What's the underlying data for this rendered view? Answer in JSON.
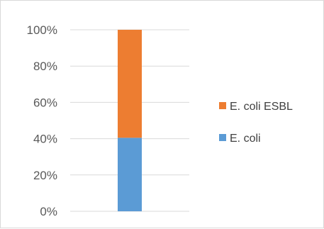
{
  "chart_data": {
    "type": "bar",
    "stacked": true,
    "percent_stacked": true,
    "categories": [
      ""
    ],
    "series": [
      {
        "name": "E. coli",
        "values": [
          40.5
        ],
        "color": "#5b9bd5"
      },
      {
        "name": "E. coli ESBL",
        "values": [
          59.5
        ],
        "color": "#ed7d31"
      }
    ],
    "ylim": [
      0,
      100
    ],
    "yticks": [
      "0%",
      "20%",
      "40%",
      "60%",
      "80%",
      "100%"
    ],
    "grid": true,
    "legend_position": "right",
    "legend_order": [
      "E. coli ESBL",
      "E. coli"
    ]
  }
}
